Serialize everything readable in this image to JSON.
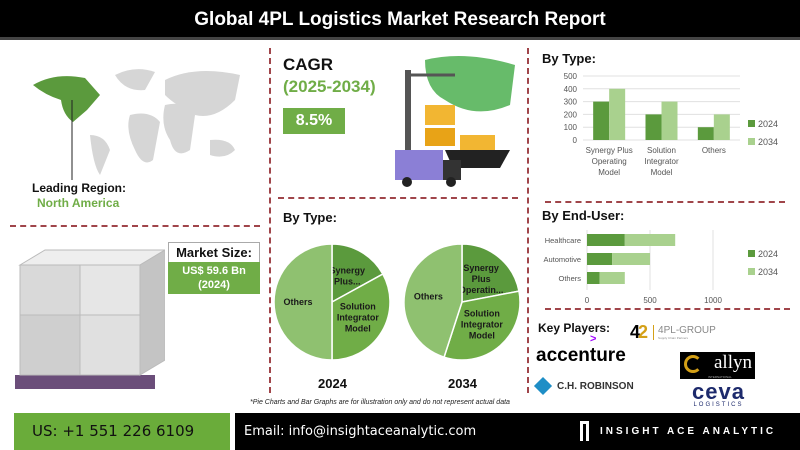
{
  "title": "Global 4PL Logistics Market Research Report",
  "leading_region": {
    "label": "Leading Region:",
    "value": "North America"
  },
  "cagr": {
    "label": "CAGR",
    "period": "(2025-2034)",
    "value": "8.5%"
  },
  "market_size": {
    "label": "Market Size:",
    "value": "US$ 59.6 Bn",
    "year": "(2024)"
  },
  "colors": {
    "dark_green": "#5b9a3d",
    "mid_green": "#70ad47",
    "light_green": "#a9d18e",
    "pie_light": "#8fc170",
    "footer_green": "#6aac3a"
  },
  "pie_section_title": "By Type:",
  "chart_data": [
    {
      "type": "bar",
      "title": "By Type:",
      "categories": [
        "Synergy Plus Operating Model",
        "Solution Integrator Model",
        "Others"
      ],
      "series": [
        {
          "name": "2024",
          "values": [
            300,
            200,
            100
          ]
        },
        {
          "name": "2034",
          "values": [
            400,
            300,
            200
          ]
        }
      ],
      "ylim": [
        0,
        500
      ],
      "yticks": [
        "0",
        "100",
        "200",
        "300",
        "400",
        "500"
      ],
      "grid": true,
      "legend": "right"
    },
    {
      "type": "bar",
      "orientation": "horizontal",
      "stacked": true,
      "title": "By End-User:",
      "categories": [
        "Healthcare",
        "Automotive",
        "Others"
      ],
      "series": [
        {
          "name": "2024",
          "values": [
            300,
            200,
            100
          ]
        },
        {
          "name": "2034",
          "values": [
            400,
            300,
            200
          ]
        }
      ],
      "xlim": [
        0,
        1000
      ],
      "xticks": [
        "0",
        "500",
        "1000"
      ],
      "grid": true,
      "legend": "right"
    },
    {
      "type": "pie",
      "label": "2024",
      "slices": [
        {
          "name": "Synergy Plus...",
          "value": 17
        },
        {
          "name": "Solution Integrator Model",
          "value": 33
        },
        {
          "name": "Others",
          "value": 50
        }
      ]
    },
    {
      "type": "pie",
      "label": "2034",
      "slices": [
        {
          "name": "Synergy Plus Operatin...",
          "value": 22
        },
        {
          "name": "Solution Integrator Model",
          "value": 33
        },
        {
          "name": "Others",
          "value": 45
        }
      ]
    }
  ],
  "key_players": {
    "label": "Key Players:",
    "logos": [
      "4PL-GROUP",
      "accenture",
      "allyn",
      "C.H. ROBINSON",
      "ceva"
    ],
    "sub": {
      "fourpl": "Supply Chain Partners",
      "allyn": "INTERNATIONAL",
      "ceva": "LOGISTICS"
    }
  },
  "disclaimer": "*Pie Charts and Bar Graphs are for illustration only and do not represent actual data",
  "footer": {
    "phone": "US: +1 551 226 6109",
    "email": "Email: info@insightaceanalytic.com",
    "brand": "INSIGHT ACE ANALYTIC"
  }
}
